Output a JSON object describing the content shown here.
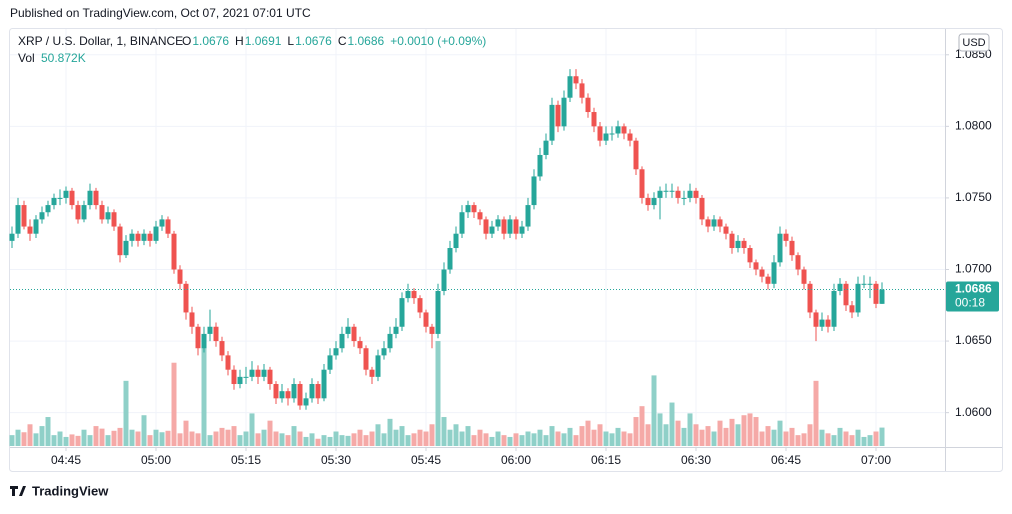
{
  "published": "Published on TradingView.com, Oct 07, 2021 07:01 UTC",
  "footer": "TradingView",
  "chart_data": {
    "type": "candlestick",
    "symbol": "XRP / U.S. Dollar, 1, BINANCE",
    "ohlc_labels": [
      "O",
      "H",
      "L",
      "C"
    ],
    "change": "+0.0010 (+0.09%)",
    "volume_name": "Vol",
    "volume_label": "50.872K",
    "currency": "USD",
    "countdown": "00:18",
    "up_color": "#26a69a",
    "down_color": "#ef5350",
    "up_volume_color": "#8fd0c8",
    "down_volume_color": "#f5a9a7",
    "x": [
      "04:36",
      "04:37",
      "04:38",
      "04:39",
      "04:40",
      "04:41",
      "04:42",
      "04:43",
      "04:44",
      "04:45",
      "04:46",
      "04:47",
      "04:48",
      "04:49",
      "04:50",
      "04:51",
      "04:52",
      "04:53",
      "04:54",
      "04:55",
      "04:56",
      "04:57",
      "04:58",
      "04:59",
      "05:00",
      "05:01",
      "05:02",
      "05:03",
      "05:04",
      "05:05",
      "05:06",
      "05:07",
      "05:08",
      "05:09",
      "05:10",
      "05:11",
      "05:12",
      "05:13",
      "05:14",
      "05:15",
      "05:16",
      "05:17",
      "05:18",
      "05:19",
      "05:20",
      "05:21",
      "05:22",
      "05:23",
      "05:24",
      "05:25",
      "05:26",
      "05:27",
      "05:28",
      "05:29",
      "05:30",
      "05:31",
      "05:32",
      "05:33",
      "05:34",
      "05:35",
      "05:36",
      "05:37",
      "05:38",
      "05:39",
      "05:40",
      "05:41",
      "05:42",
      "05:43",
      "05:44",
      "05:45",
      "05:46",
      "05:47",
      "05:48",
      "05:49",
      "05:50",
      "05:51",
      "05:52",
      "05:53",
      "05:54",
      "05:55",
      "05:56",
      "05:57",
      "05:58",
      "05:59",
      "06:00",
      "06:01",
      "06:02",
      "06:03",
      "06:04",
      "06:05",
      "06:06",
      "06:07",
      "06:08",
      "06:09",
      "06:10",
      "06:11",
      "06:12",
      "06:13",
      "06:14",
      "06:15",
      "06:16",
      "06:17",
      "06:18",
      "06:19",
      "06:20",
      "06:21",
      "06:22",
      "06:23",
      "06:24",
      "06:25",
      "06:26",
      "06:27",
      "06:28",
      "06:29",
      "06:30",
      "06:31",
      "06:32",
      "06:33",
      "06:34",
      "06:35",
      "06:36",
      "06:37",
      "06:38",
      "06:39",
      "06:40",
      "06:41",
      "06:42",
      "06:43",
      "06:44",
      "06:45",
      "06:46",
      "06:47",
      "06:48",
      "06:49",
      "06:50",
      "06:51",
      "06:52",
      "06:53",
      "06:54",
      "06:55",
      "06:56",
      "06:57",
      "06:58",
      "06:59",
      "07:00",
      "07:01"
    ],
    "candles": [
      [
        1.072,
        1.073,
        1.0715,
        1.0725,
        30
      ],
      [
        1.0725,
        1.075,
        1.0722,
        1.0745,
        45
      ],
      [
        1.0745,
        1.0748,
        1.0728,
        1.073,
        38
      ],
      [
        1.073,
        1.0735,
        1.072,
        1.0725,
        60
      ],
      [
        1.0725,
        1.0738,
        1.0722,
        1.0735,
        35
      ],
      [
        1.0735,
        1.0744,
        1.0732,
        1.074,
        55
      ],
      [
        1.074,
        1.0748,
        1.0737,
        1.0745,
        80
      ],
      [
        1.0745,
        1.0753,
        1.0742,
        1.075,
        30
      ],
      [
        1.075,
        1.0756,
        1.0745,
        1.075,
        40
      ],
      [
        1.075,
        1.0758,
        1.0746,
        1.0755,
        25
      ],
      [
        1.0755,
        1.0757,
        1.0742,
        1.0745,
        32
      ],
      [
        1.0745,
        1.0748,
        1.0732,
        1.0735,
        28
      ],
      [
        1.0735,
        1.0748,
        1.0733,
        1.0745,
        45
      ],
      [
        1.0745,
        1.076,
        1.0742,
        1.0755,
        30
      ],
      [
        1.0755,
        1.0757,
        1.0742,
        1.0745,
        55
      ],
      [
        1.0745,
        1.0748,
        1.0732,
        1.0735,
        48
      ],
      [
        1.0735,
        1.0744,
        1.0732,
        1.074,
        30
      ],
      [
        1.074,
        1.0742,
        1.0727,
        1.073,
        42
      ],
      [
        1.073,
        1.0732,
        1.0705,
        1.071,
        50
      ],
      [
        1.071,
        1.0724,
        1.0708,
        1.072,
        180
      ],
      [
        1.072,
        1.0728,
        1.0716,
        1.0725,
        45
      ],
      [
        1.0725,
        1.0727,
        1.0716,
        1.072,
        40
      ],
      [
        1.072,
        1.0728,
        1.0717,
        1.0725,
        85
      ],
      [
        1.0725,
        1.0727,
        1.0716,
        1.072,
        30
      ],
      [
        1.072,
        1.0734,
        1.0718,
        1.073,
        45
      ],
      [
        1.073,
        1.0738,
        1.0727,
        1.0735,
        38
      ],
      [
        1.0735,
        1.0737,
        1.0722,
        1.0725,
        42
      ],
      [
        1.0725,
        1.0727,
        1.0697,
        1.07,
        230
      ],
      [
        1.07,
        1.0703,
        1.0686,
        1.069,
        35
      ],
      [
        1.069,
        1.0692,
        1.0665,
        1.067,
        70
      ],
      [
        1.067,
        1.0674,
        1.0655,
        1.066,
        40
      ],
      [
        1.066,
        1.0662,
        1.064,
        1.0645,
        35
      ],
      [
        1.0645,
        1.066,
        1.0642,
        1.0655,
        280
      ],
      [
        1.0655,
        1.0672,
        1.065,
        1.066,
        30
      ],
      [
        1.066,
        1.0663,
        1.0646,
        1.065,
        40
      ],
      [
        1.065,
        1.0653,
        1.0636,
        1.064,
        50
      ],
      [
        1.064,
        1.0643,
        1.0626,
        1.063,
        45
      ],
      [
        1.063,
        1.0633,
        1.0616,
        1.062,
        55
      ],
      [
        1.062,
        1.063,
        1.0617,
        1.0625,
        30
      ],
      [
        1.0625,
        1.0632,
        1.062,
        1.0625,
        40
      ],
      [
        1.0625,
        1.0636,
        1.0622,
        1.063,
        90
      ],
      [
        1.063,
        1.0633,
        1.062,
        1.0625,
        35
      ],
      [
        1.0625,
        1.0634,
        1.0622,
        1.063,
        45
      ],
      [
        1.063,
        1.0632,
        1.0616,
        1.062,
        70
      ],
      [
        1.062,
        1.0622,
        1.0606,
        1.061,
        40
      ],
      [
        1.061,
        1.062,
        1.0607,
        1.0615,
        35
      ],
      [
        1.0615,
        1.0617,
        1.0605,
        1.061,
        30
      ],
      [
        1.061,
        1.0624,
        1.0607,
        1.062,
        55
      ],
      [
        1.062,
        1.0622,
        1.0602,
        1.0605,
        40
      ],
      [
        1.0605,
        1.0614,
        1.0602,
        1.061,
        25
      ],
      [
        1.061,
        1.0624,
        1.0607,
        1.062,
        35
      ],
      [
        1.062,
        1.0622,
        1.0606,
        1.061,
        20
      ],
      [
        1.061,
        1.0634,
        1.0608,
        1.063,
        30
      ],
      [
        1.063,
        1.0645,
        1.0627,
        1.064,
        25
      ],
      [
        1.064,
        1.065,
        1.0637,
        1.0645,
        40
      ],
      [
        1.0645,
        1.066,
        1.0642,
        1.0655,
        30
      ],
      [
        1.0655,
        1.0666,
        1.0652,
        1.066,
        28
      ],
      [
        1.066,
        1.0662,
        1.0646,
        1.065,
        35
      ],
      [
        1.065,
        1.0653,
        1.0641,
        1.0645,
        45
      ],
      [
        1.0645,
        1.0647,
        1.0626,
        1.063,
        30
      ],
      [
        1.063,
        1.0632,
        1.062,
        1.0625,
        40
      ],
      [
        1.0625,
        1.0644,
        1.0622,
        1.064,
        60
      ],
      [
        1.064,
        1.065,
        1.0637,
        1.0645,
        35
      ],
      [
        1.0645,
        1.066,
        1.0642,
        1.0655,
        75
      ],
      [
        1.0655,
        1.0666,
        1.0652,
        1.066,
        45
      ],
      [
        1.066,
        1.0684,
        1.0657,
        1.068,
        55
      ],
      [
        1.068,
        1.069,
        1.0677,
        1.0685,
        30
      ],
      [
        1.0685,
        1.0687,
        1.0676,
        1.068,
        35
      ],
      [
        1.068,
        1.0682,
        1.0666,
        1.067,
        45
      ],
      [
        1.067,
        1.0672,
        1.0656,
        1.066,
        40
      ],
      [
        1.066,
        1.0662,
        1.0645,
        1.0655,
        60
      ],
      [
        1.0655,
        1.069,
        1.0652,
        1.0685,
        290
      ],
      [
        1.0685,
        1.0705,
        1.0682,
        1.07,
        80
      ],
      [
        1.07,
        1.072,
        1.0697,
        1.0715,
        45
      ],
      [
        1.0715,
        1.073,
        1.0712,
        1.0725,
        60
      ],
      [
        1.0725,
        1.0745,
        1.0722,
        1.074,
        40
      ],
      [
        1.074,
        1.0748,
        1.0736,
        1.0745,
        55
      ],
      [
        1.0745,
        1.0747,
        1.0736,
        1.074,
        30
      ],
      [
        1.074,
        1.0742,
        1.0731,
        1.0735,
        45
      ],
      [
        1.0735,
        1.0737,
        1.0721,
        1.0725,
        35
      ],
      [
        1.0725,
        1.0734,
        1.0722,
        1.073,
        25
      ],
      [
        1.073,
        1.0738,
        1.0727,
        1.0735,
        40
      ],
      [
        1.0735,
        1.0737,
        1.0721,
        1.0725,
        30
      ],
      [
        1.0725,
        1.0738,
        1.0722,
        1.0735,
        25
      ],
      [
        1.0735,
        1.0737,
        1.0721,
        1.0725,
        35
      ],
      [
        1.0725,
        1.0734,
        1.0722,
        1.073,
        30
      ],
      [
        1.073,
        1.075,
        1.0727,
        1.0745,
        40
      ],
      [
        1.0745,
        1.077,
        1.0742,
        1.0765,
        35
      ],
      [
        1.0765,
        1.0785,
        1.0762,
        1.078,
        45
      ],
      [
        1.078,
        1.0795,
        1.0777,
        1.079,
        30
      ],
      [
        1.079,
        1.082,
        1.0787,
        1.0815,
        55
      ],
      [
        1.0815,
        1.0818,
        1.0796,
        1.08,
        40
      ],
      [
        1.08,
        1.0825,
        1.0797,
        1.082,
        35
      ],
      [
        1.082,
        1.084,
        1.0817,
        1.0835,
        50
      ],
      [
        1.0835,
        1.084,
        1.0826,
        1.083,
        30
      ],
      [
        1.083,
        1.0833,
        1.0816,
        1.082,
        55
      ],
      [
        1.082,
        1.0823,
        1.0806,
        1.081,
        70
      ],
      [
        1.081,
        1.0813,
        1.0796,
        1.08,
        45
      ],
      [
        1.08,
        1.0803,
        1.0786,
        1.079,
        60
      ],
      [
        1.079,
        1.08,
        1.0787,
        1.0795,
        40
      ],
      [
        1.0795,
        1.08,
        1.079,
        1.0795,
        35
      ],
      [
        1.0795,
        1.0804,
        1.0792,
        1.08,
        50
      ],
      [
        1.08,
        1.0802,
        1.0791,
        1.0795,
        40
      ],
      [
        1.0795,
        1.0798,
        1.0786,
        1.079,
        35
      ],
      [
        1.079,
        1.0792,
        1.0766,
        1.077,
        80
      ],
      [
        1.077,
        1.0772,
        1.0746,
        1.075,
        110
      ],
      [
        1.075,
        1.0753,
        1.0741,
        1.0745,
        60
      ],
      [
        1.0745,
        1.0754,
        1.0742,
        1.075,
        195
      ],
      [
        1.075,
        1.0758,
        1.0735,
        1.0755,
        90
      ],
      [
        1.0755,
        1.076,
        1.075,
        1.0755,
        60
      ],
      [
        1.0755,
        1.076,
        1.075,
        1.0755,
        120
      ],
      [
        1.0755,
        1.0758,
        1.0746,
        1.075,
        70
      ],
      [
        1.075,
        1.0755,
        1.0745,
        1.075,
        50
      ],
      [
        1.075,
        1.076,
        1.0747,
        1.0755,
        90
      ],
      [
        1.0755,
        1.0757,
        1.0746,
        1.075,
        60
      ],
      [
        1.075,
        1.0752,
        1.0731,
        1.0735,
        45
      ],
      [
        1.0735,
        1.0737,
        1.0726,
        1.073,
        55
      ],
      [
        1.073,
        1.0738,
        1.0727,
        1.0735,
        40
      ],
      [
        1.0735,
        1.0737,
        1.0726,
        1.073,
        70
      ],
      [
        1.073,
        1.0732,
        1.0721,
        1.0725,
        50
      ],
      [
        1.0725,
        1.0727,
        1.0711,
        1.0715,
        75
      ],
      [
        1.0715,
        1.0724,
        1.0712,
        1.072,
        60
      ],
      [
        1.072,
        1.0722,
        1.0711,
        1.0715,
        85
      ],
      [
        1.0715,
        1.0717,
        1.0701,
        1.0705,
        90
      ],
      [
        1.0705,
        1.0707,
        1.0696,
        1.07,
        80
      ],
      [
        1.07,
        1.0702,
        1.0691,
        1.0695,
        40
      ],
      [
        1.0695,
        1.0697,
        1.0686,
        1.069,
        55
      ],
      [
        1.069,
        1.071,
        1.0687,
        1.0705,
        45
      ],
      [
        1.0705,
        1.073,
        1.0702,
        1.0725,
        70
      ],
      [
        1.0725,
        1.0728,
        1.0716,
        1.072,
        40
      ],
      [
        1.072,
        1.0723,
        1.0706,
        1.071,
        50
      ],
      [
        1.071,
        1.0712,
        1.0696,
        1.07,
        30
      ],
      [
        1.07,
        1.0702,
        1.0686,
        1.069,
        35
      ],
      [
        1.069,
        1.0692,
        1.0666,
        1.067,
        60
      ],
      [
        1.067,
        1.0672,
        1.065,
        1.066,
        180
      ],
      [
        1.066,
        1.067,
        1.0657,
        1.0665,
        45
      ],
      [
        1.0665,
        1.0668,
        1.0656,
        1.066,
        35
      ],
      [
        1.066,
        1.069,
        1.0657,
        1.0685,
        30
      ],
      [
        1.0685,
        1.0694,
        1.0682,
        1.069,
        50
      ],
      [
        1.069,
        1.0692,
        1.0671,
        1.0675,
        40
      ],
      [
        1.0675,
        1.0678,
        1.0666,
        1.067,
        30
      ],
      [
        1.067,
        1.0695,
        1.0667,
        1.069,
        45
      ],
      [
        1.069,
        1.0696,
        1.0687,
        1.069,
        25
      ],
      [
        1.069,
        1.0695,
        1.068,
        1.069,
        30
      ],
      [
        1.069,
        1.0692,
        1.0673,
        1.0676,
        40
      ],
      [
        1.0676,
        1.0691,
        1.0676,
        1.0686,
        50.872
      ]
    ],
    "ylim": [
      1.0576,
      1.0868
    ],
    "yticks": [
      {
        "value": 1.06,
        "label": "1.0600"
      },
      {
        "value": 1.065,
        "label": "1.0650"
      },
      {
        "value": 1.07,
        "label": "1.0700"
      },
      {
        "value": 1.075,
        "label": "1.0750"
      },
      {
        "value": 1.08,
        "label": "1.0800"
      },
      {
        "value": 1.085,
        "label": "1.0850"
      }
    ],
    "xticks": [
      "04:45",
      "05:00",
      "05:15",
      "05:30",
      "05:45",
      "06:00",
      "06:15",
      "06:30",
      "06:45",
      "07:00"
    ],
    "grid": true
  }
}
